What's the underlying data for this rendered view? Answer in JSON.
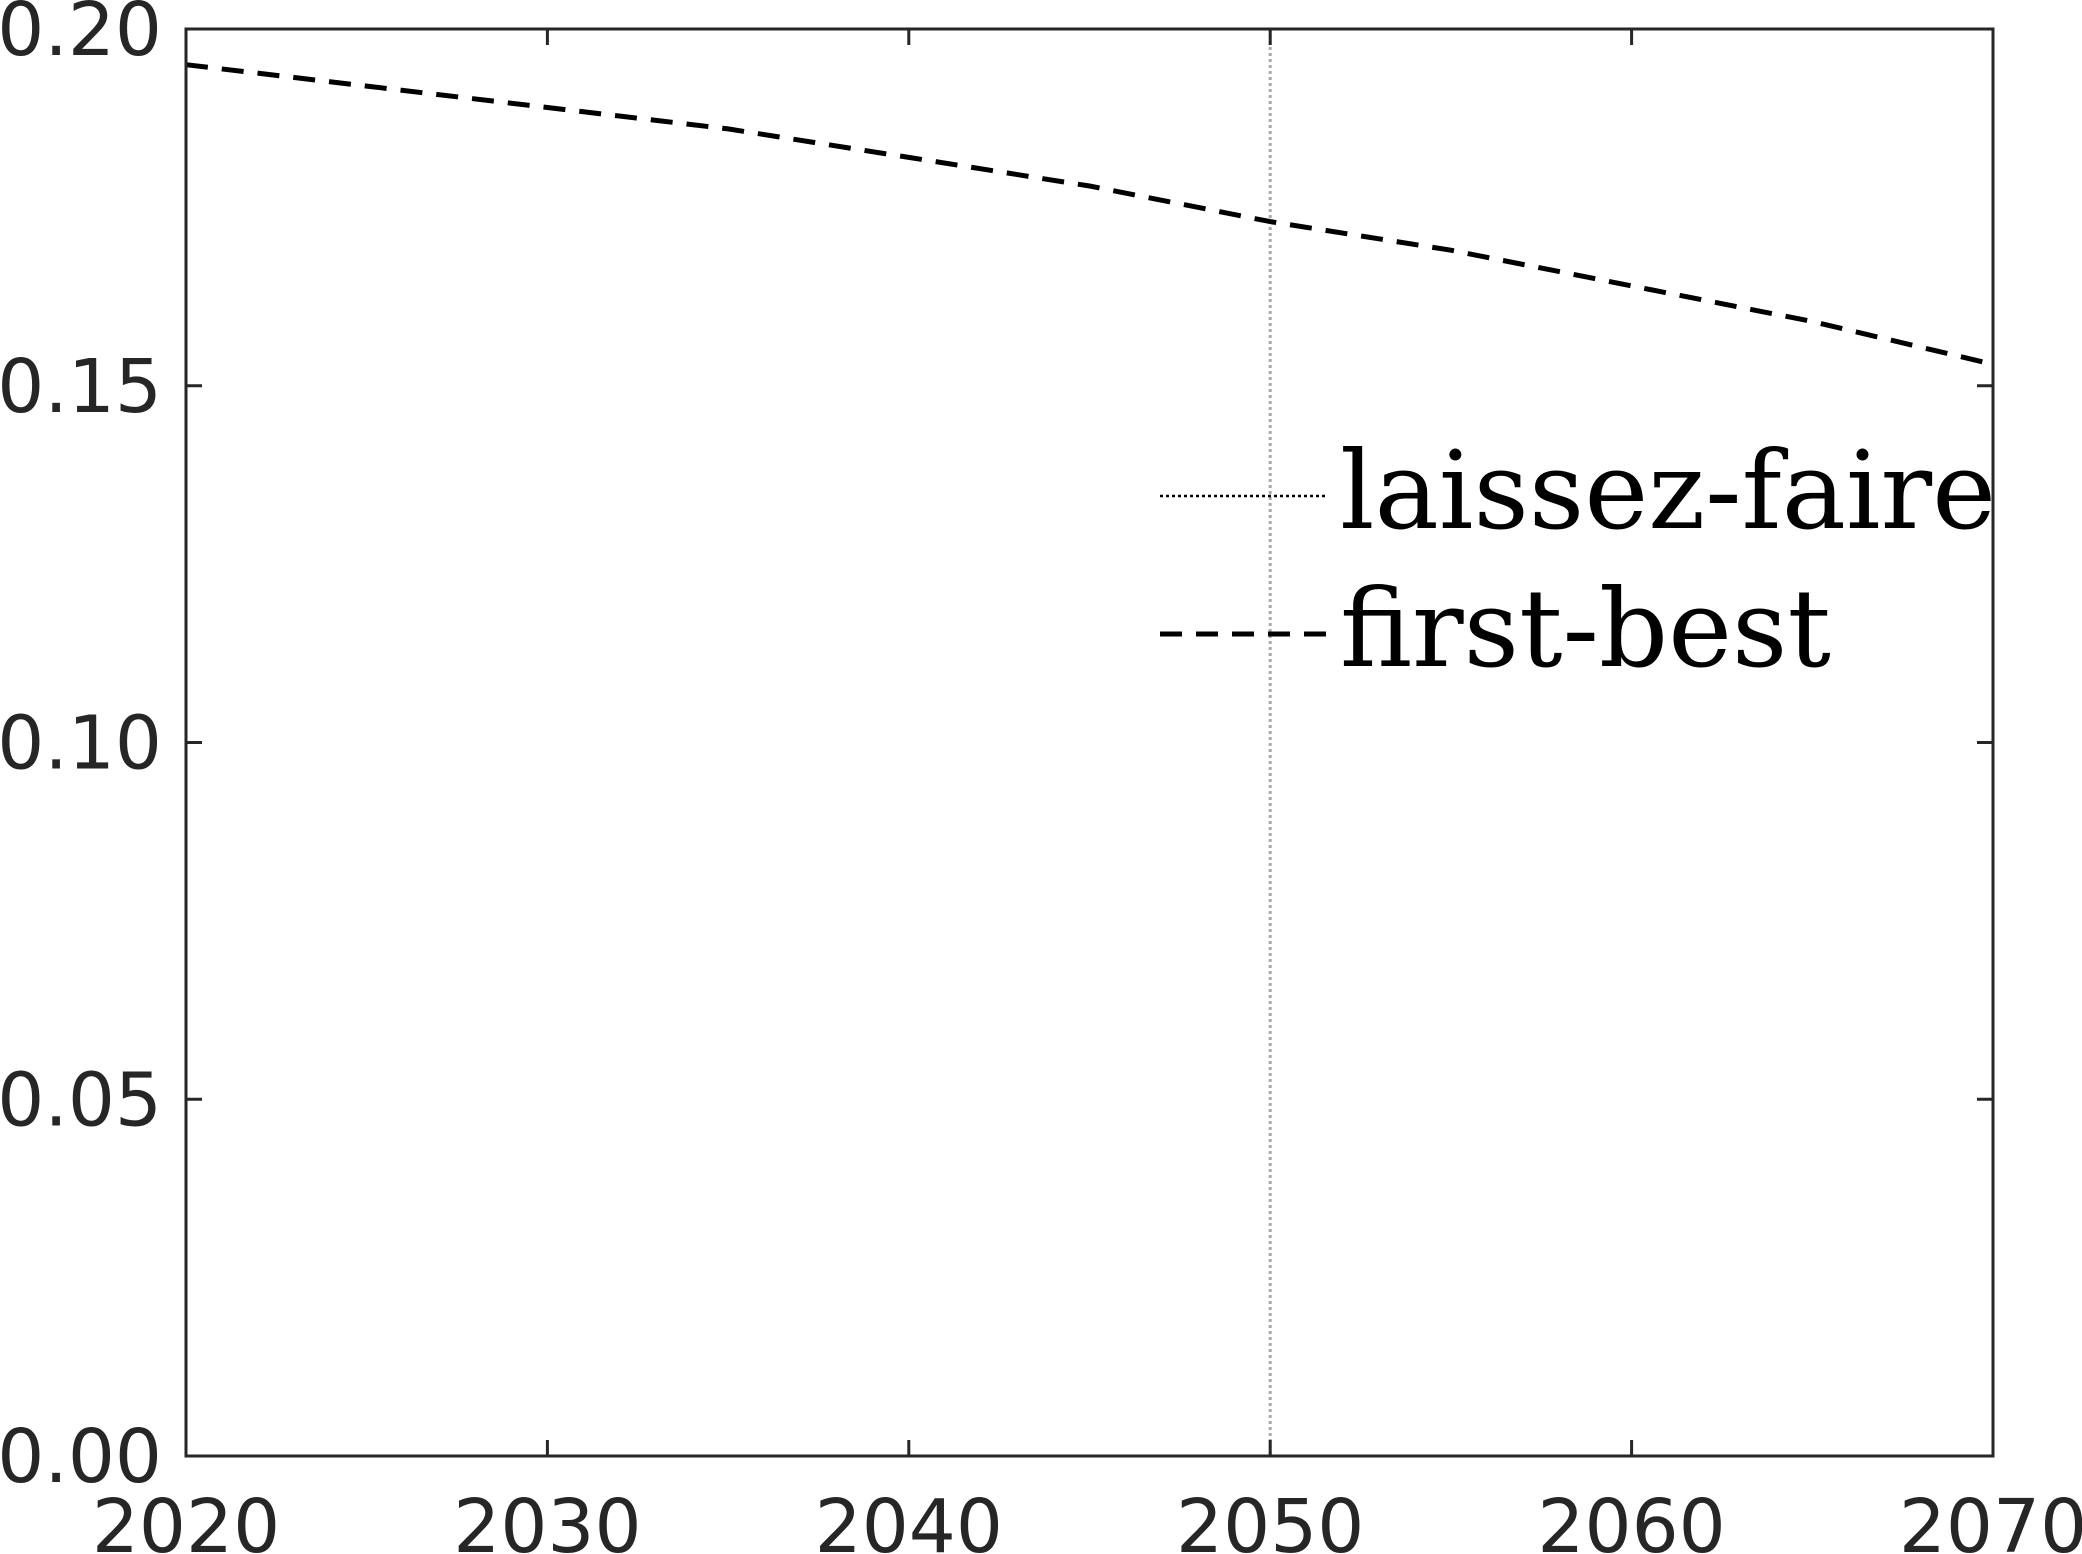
{
  "chart_data": {
    "type": "line",
    "title": "",
    "xlabel": "",
    "ylabel": "",
    "xlim": [
      2020,
      2070
    ],
    "ylim": [
      0.0,
      0.2
    ],
    "x_ticks": [
      2020,
      2030,
      2040,
      2050,
      2060,
      2070
    ],
    "y_ticks": [
      0.0,
      0.05,
      0.1,
      0.15,
      0.2
    ],
    "x_tick_labels": [
      "2020",
      "2030",
      "2040",
      "2050",
      "2060",
      "2070"
    ],
    "y_tick_labels": [
      "0.00",
      "0.05",
      "0.10",
      "0.15",
      "0.20"
    ],
    "grid": false,
    "legend_position": "center-right",
    "reference_line": {
      "axis": "x",
      "value": 2050,
      "color": "#aaaaaa",
      "style": "dotted"
    },
    "series": [
      {
        "name": "laissez-faire",
        "style": "dotted",
        "color": "#000000",
        "x": [
          2020,
          2030,
          2040,
          2050,
          2060,
          2070
        ],
        "y": [
          0.0,
          0.0,
          0.0,
          0.0,
          0.0,
          0.0
        ]
      },
      {
        "name": "first-best",
        "style": "dashed",
        "color": "#000000",
        "x": [
          2020,
          2025,
          2030,
          2035,
          2040,
          2045,
          2050,
          2055,
          2060,
          2065,
          2070
        ],
        "y": [
          0.195,
          0.192,
          0.189,
          0.186,
          0.182,
          0.178,
          0.173,
          0.169,
          0.164,
          0.159,
          0.153
        ]
      }
    ]
  }
}
